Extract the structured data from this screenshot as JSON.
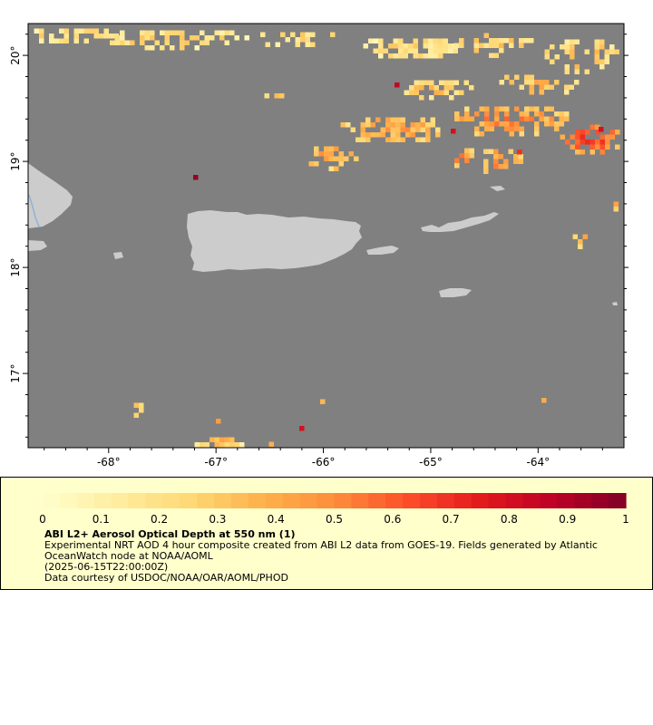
{
  "map": {
    "lon_range": [
      -68.75,
      -63.2
    ],
    "lat_range": [
      16.3,
      20.3
    ],
    "background_color": "#808080",
    "land_color": "#cccccc",
    "lat_ticks": [
      {
        "value": 20,
        "label": "20°"
      },
      {
        "value": 19,
        "label": "19°"
      },
      {
        "value": 18,
        "label": "18°"
      },
      {
        "value": 17,
        "label": "17°"
      }
    ],
    "lon_ticks": [
      {
        "value": -68,
        "label": "-68°"
      },
      {
        "value": -67,
        "label": "-67°"
      },
      {
        "value": -66,
        "label": "-66°"
      },
      {
        "value": -65,
        "label": "-65°"
      },
      {
        "value": -64,
        "label": "-64°"
      }
    ]
  },
  "colorbar": {
    "min": 0,
    "max": 1,
    "tick_labels": [
      "0",
      "0.1",
      "0.2",
      "0.3",
      "0.4",
      "0.5",
      "0.6",
      "0.7",
      "0.8",
      "0.9",
      "1"
    ],
    "colors": [
      "#ffffcc",
      "#ffeda0",
      "#fed976",
      "#feb24c",
      "#fd8d3c",
      "#fc4e2a",
      "#e31a1c",
      "#bd0026",
      "#800026"
    ]
  },
  "legend": {
    "title": "ABI L2+ Aerosol Optical Depth at 550 nm (1)",
    "line1": "Experimental NRT AOD 4 hour composite created from ABI L2 data from GOES-19. Fields generated by Atlantic OceanWatch node at NOAA/AOML",
    "line2": "(2025-06-15T22:00:00Z)",
    "line3": "Data courtesy of USDOC/NOAA/OAR/AOML/PHOD"
  }
}
